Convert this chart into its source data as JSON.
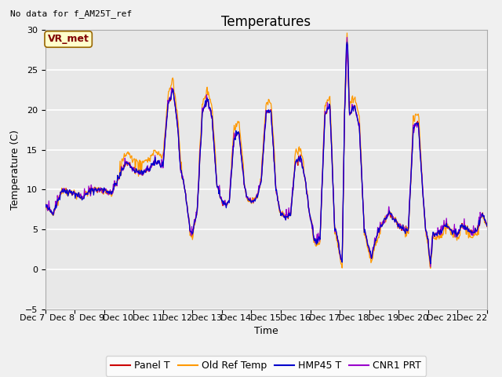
{
  "title": "Temperatures",
  "xlabel": "Time",
  "ylabel": "Temperature (C)",
  "ylim": [
    -5,
    30
  ],
  "yticks": [
    -5,
    0,
    5,
    10,
    15,
    20,
    25,
    30
  ],
  "xlim": [
    0,
    360
  ],
  "xtick_labels": [
    "Dec 7",
    "Dec 8",
    "Dec 9",
    "Dec 10",
    "Dec 11",
    "Dec 12",
    "Dec 13",
    "Dec 14",
    "Dec 15",
    "Dec 16",
    "Dec 17",
    "Dec 18",
    "Dec 19",
    "Dec 20",
    "Dec 21",
    "Dec 22"
  ],
  "xtick_positions": [
    0,
    24,
    48,
    72,
    96,
    120,
    144,
    168,
    192,
    216,
    240,
    264,
    288,
    312,
    336,
    360
  ],
  "panel_t_color": "#cc0000",
  "old_ref_color": "#ff9900",
  "hmp45_color": "#0000cc",
  "cnr1_color": "#9900cc",
  "plot_bg_color": "#e8e8e8",
  "fig_bg_color": "#f0f0f0",
  "grid_color": "#ffffff",
  "no_data_text": "No data for f_AM25T_ref",
  "vr_met_text": "VR_met",
  "legend_labels": [
    "Panel T",
    "Old Ref Temp",
    "HMP45 T",
    "CNR1 PRT"
  ],
  "title_fontsize": 12,
  "axis_fontsize": 9,
  "tick_fontsize": 8,
  "legend_fontsize": 9
}
